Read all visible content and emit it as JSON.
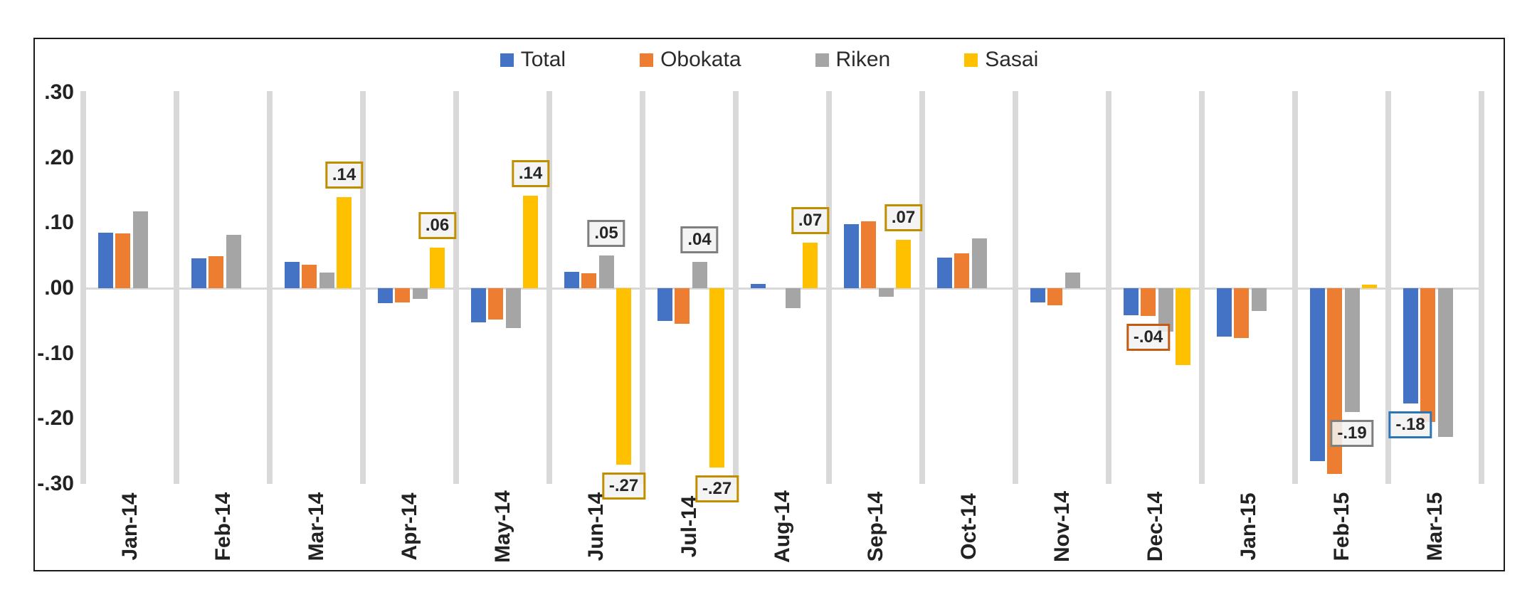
{
  "chart_data": {
    "type": "bar",
    "title": "",
    "categories": [
      "Jan-14",
      "Feb-14",
      "Mar-14",
      "Apr-14",
      "May-14",
      "Jun-14",
      "Jul-14",
      "Aug-14",
      "Sep-14",
      "Oct-14",
      "Nov-14",
      "Dec-14",
      "Jan-15",
      "Feb-15",
      "Mar-15"
    ],
    "series": [
      {
        "name": "Total",
        "color": "#4472C4",
        "label_border": "#2E75B6",
        "values": [
          0.085,
          0.046,
          0.04,
          -0.023,
          -0.052,
          0.025,
          -0.05,
          0.007,
          0.098,
          0.047,
          -0.022,
          -0.041,
          -0.074,
          -0.265,
          -0.177
        ]
      },
      {
        "name": "Obokata",
        "color": "#ED7D31",
        "label_border": "#C55A11",
        "values": [
          0.084,
          0.049,
          0.036,
          -0.022,
          -0.048,
          0.023,
          -0.055,
          null,
          0.103,
          0.053,
          -0.026,
          -0.043,
          -0.076,
          -0.285,
          -0.205
        ]
      },
      {
        "name": "Riken",
        "color": "#A5A5A5",
        "label_border": "#7F7F7F",
        "values": [
          0.118,
          0.082,
          0.024,
          -0.016,
          -0.061,
          0.05,
          0.04,
          -0.031,
          -0.013,
          0.076,
          0.024,
          -0.067,
          -0.035,
          -0.19,
          -0.228
        ]
      },
      {
        "name": "Sasai",
        "color": "#FFC000",
        "label_border": "#BF8F00",
        "values": [
          null,
          null,
          0.14,
          0.062,
          0.142,
          -0.27,
          -0.275,
          0.07,
          0.074,
          null,
          null,
          -0.118,
          null,
          0.005,
          null
        ]
      }
    ],
    "callouts": [
      {
        "category": "Mar-14",
        "series": "Sasai",
        "text": ".14"
      },
      {
        "category": "Apr-14",
        "series": "Sasai",
        "text": ".06"
      },
      {
        "category": "May-14",
        "series": "Sasai",
        "text": ".14"
      },
      {
        "category": "Jun-14",
        "series": "Riken",
        "text": ".05"
      },
      {
        "category": "Jun-14",
        "series": "Sasai",
        "text": "-.27"
      },
      {
        "category": "Jul-14",
        "series": "Riken",
        "text": ".04"
      },
      {
        "category": "Jul-14",
        "series": "Sasai",
        "text": "-.27"
      },
      {
        "category": "Aug-14",
        "series": "Sasai",
        "text": ".07"
      },
      {
        "category": "Sep-14",
        "series": "Sasai",
        "text": ".07"
      },
      {
        "category": "Dec-14",
        "series": "Obokata",
        "text": "-.04"
      },
      {
        "category": "Feb-15",
        "series": "Riken",
        "text": "-.19"
      },
      {
        "category": "Mar-15",
        "series": "Total",
        "text": "-.18"
      }
    ],
    "y_axis": {
      "tick_labels": [
        ".30",
        ".20",
        ".10",
        ".00",
        "-.10",
        "-.20",
        "-.30"
      ],
      "tick_values": [
        0.3,
        0.2,
        0.1,
        0.0,
        -0.1,
        -0.2,
        -0.3
      ],
      "min": -0.3,
      "max": 0.3
    },
    "legend_position": "top-center",
    "grid": "vertical category separators + zero line"
  },
  "colors": {
    "gridline": "#D9D9D9",
    "zero_line": "#D9D9D9",
    "frame_border": "#1A1A1A",
    "axis_text": "#222222",
    "callout_fill": "#F2F2F2"
  }
}
